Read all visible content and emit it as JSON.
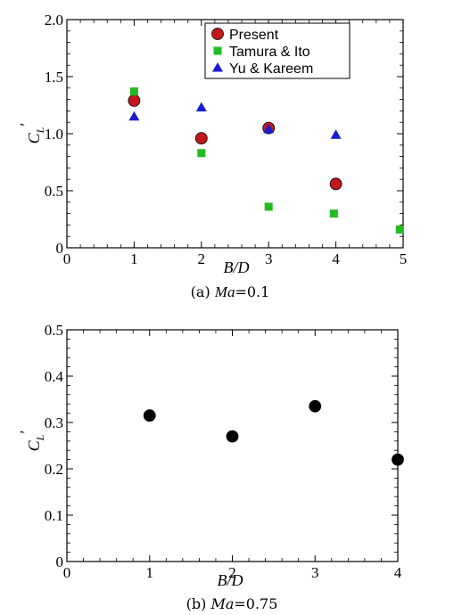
{
  "chart_data": [
    {
      "type": "scatter",
      "caption": "(a) Ma=0.1",
      "caption_parts": {
        "prefix": "(a)",
        "var": "Ma",
        "eq": "=0.1"
      },
      "xlabel": "B/D",
      "ylabel": "C",
      "ylabel_sub": "L",
      "ylabel_mark": "′",
      "xlim": [
        0,
        5
      ],
      "ylim": [
        0,
        2.0
      ],
      "xticks": [
        "0",
        "1",
        "2",
        "3",
        "4",
        "5"
      ],
      "yticks": [
        "0",
        "0.5",
        "1.0",
        "1.5",
        "2.0"
      ],
      "grid": false,
      "legend_position": "top-right",
      "series": [
        {
          "name": "Present",
          "marker": "circle",
          "color": "#c0181c",
          "points": [
            [
              1,
              1.29
            ],
            [
              2,
              0.96
            ],
            [
              3,
              1.05
            ],
            [
              4,
              0.56
            ]
          ]
        },
        {
          "name": "Tamura & Ito",
          "marker": "square",
          "color": "#22bb22",
          "points": [
            [
              1,
              1.37
            ],
            [
              2,
              0.83
            ],
            [
              3,
              0.36
            ],
            [
              3.97,
              0.3
            ],
            [
              4.95,
              0.16
            ]
          ]
        },
        {
          "name": "Yu & Kareem",
          "marker": "triangle",
          "color": "#1a1ad0",
          "points": [
            [
              1,
              1.15
            ],
            [
              2,
              1.23
            ],
            [
              3,
              1.04
            ],
            [
              4,
              0.99
            ]
          ]
        }
      ]
    },
    {
      "type": "scatter",
      "caption": "(b) Ma=0.75",
      "caption_parts": {
        "prefix": "(b)",
        "var": "Ma",
        "eq": "=0.75"
      },
      "xlabel": "B/D",
      "ylabel": "C",
      "ylabel_sub": "L",
      "ylabel_mark": "′",
      "xlim": [
        0,
        4
      ],
      "ylim": [
        0,
        0.5
      ],
      "xticks": [
        "0",
        "1",
        "2",
        "3",
        "4"
      ],
      "yticks": [
        "0",
        "0.1",
        "0.2",
        "0.3",
        "0.4",
        "0.5"
      ],
      "grid": false,
      "series": [
        {
          "marker": "circle",
          "color": "#000000",
          "points": [
            [
              1,
              0.315
            ],
            [
              2,
              0.27
            ],
            [
              3,
              0.335
            ],
            [
              4,
              0.22
            ]
          ]
        }
      ]
    }
  ]
}
